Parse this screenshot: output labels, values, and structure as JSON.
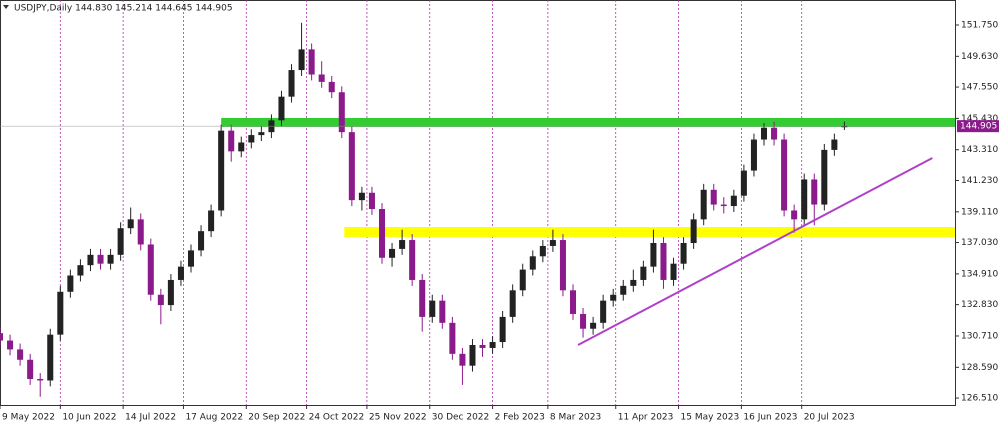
{
  "chart_data": {
    "type": "candlestick",
    "title": "USDJPY,Daily  144.830 145.214 144.645 144.905",
    "price_label": "144.905",
    "up_color": "#222222",
    "down_color": "#8b1a8b",
    "grid": true,
    "xlim": [
      0,
      380
    ],
    "ylim": [
      126.04,
      153.44
    ],
    "xticks": [
      {
        "value": 0,
        "label": "9 May 2022"
      },
      {
        "value": 24,
        "label": "10 Jun 2022"
      },
      {
        "value": 49,
        "label": "14 Jul 2022"
      },
      {
        "value": 73,
        "label": "17 Aug 2022"
      },
      {
        "value": 98,
        "label": "20 Sep 2022"
      },
      {
        "value": 122,
        "label": "24 Oct 2022"
      },
      {
        "value": 146,
        "label": "25 Nov 2022"
      },
      {
        "value": 171,
        "label": "30 Dec 2022"
      },
      {
        "value": 196,
        "label": "2 Feb 2023"
      },
      {
        "value": 218,
        "label": "8 Mar 2023"
      },
      {
        "value": 245,
        "label": "11 Apr 2023"
      },
      {
        "value": 270,
        "label": "15 May 2023"
      },
      {
        "value": 295,
        "label": "16 Jun 2023"
      },
      {
        "value": 319,
        "label": "20 Jul 2023"
      }
    ],
    "yticks": [
      {
        "value": 151.75,
        "label": "151.750"
      },
      {
        "value": 149.63,
        "label": "149.630"
      },
      {
        "value": 147.55,
        "label": "147.550"
      },
      {
        "value": 145.43,
        "label": "145.430"
      },
      {
        "value": 143.31,
        "label": "143.310"
      },
      {
        "value": 141.23,
        "label": "141.230"
      },
      {
        "value": 139.11,
        "label": "139.110"
      },
      {
        "value": 137.03,
        "label": "137.030"
      },
      {
        "value": 134.91,
        "label": "134.910"
      },
      {
        "value": 132.83,
        "label": "132.830"
      },
      {
        "value": 130.71,
        "label": "130.710"
      },
      {
        "value": 128.59,
        "label": "128.590"
      },
      {
        "value": 126.51,
        "label": "126.510"
      }
    ],
    "x": [
      0,
      4,
      8,
      12,
      16,
      20,
      24,
      28,
      32,
      36,
      40,
      44,
      48,
      52,
      56,
      60,
      64,
      68,
      72,
      76,
      80,
      84,
      88,
      92,
      96,
      100,
      104,
      108,
      112,
      116,
      120,
      124,
      128,
      132,
      136,
      140,
      144,
      148,
      152,
      156,
      160,
      164,
      168,
      172,
      176,
      180,
      184,
      188,
      192,
      196,
      200,
      204,
      208,
      212,
      216,
      220,
      224,
      228,
      232,
      236,
      240,
      244,
      248,
      252,
      256,
      260,
      264,
      268,
      272,
      276,
      280,
      284,
      288,
      292,
      296,
      300,
      304,
      308,
      312,
      316,
      320,
      324,
      328,
      332,
      336
    ],
    "open": [
      130.9,
      130.4,
      129.8,
      129.1,
      127.8,
      127.7,
      130.8,
      133.7,
      134.8,
      135.5,
      136.2,
      135.6,
      136.2,
      138.0,
      138.6,
      136.9,
      133.5,
      132.8,
      134.5,
      135.4,
      136.5,
      137.8,
      139.2,
      144.6,
      143.2,
      143.8,
      144.3,
      144.5,
      145.3,
      146.9,
      148.7,
      150.1,
      148.4,
      147.9,
      147.2,
      144.5,
      139.9,
      140.4,
      139.3,
      136.0,
      136.6,
      137.2,
      134.5,
      132.0,
      133.1,
      131.6,
      129.5,
      128.7,
      130.1,
      129.9,
      130.3,
      132.0,
      133.8,
      135.2,
      136.1,
      136.8,
      137.2,
      133.8,
      132.2,
      131.2,
      131.6,
      133.1,
      133.5,
      134.1,
      134.5,
      135.4,
      137.0,
      134.5,
      135.6,
      137.0,
      138.6,
      140.6,
      139.6,
      139.5,
      140.2,
      141.9,
      144.0,
      144.8,
      144.0,
      139.2,
      138.6,
      141.3,
      139.6,
      143.3,
      144.83
    ],
    "high": [
      131.3,
      130.8,
      130.2,
      129.5,
      128.2,
      131.2,
      134.1,
      135.2,
      135.9,
      136.6,
      136.6,
      136.6,
      138.4,
      139.4,
      139.0,
      137.3,
      133.9,
      134.9,
      135.8,
      136.9,
      138.2,
      139.6,
      145.0,
      145.0,
      144.2,
      144.7,
      144.9,
      145.7,
      147.3,
      149.1,
      151.9,
      150.5,
      149.3,
      148.3,
      147.6,
      144.9,
      140.8,
      140.8,
      139.7,
      137.0,
      137.9,
      137.6,
      134.9,
      133.5,
      133.5,
      132.0,
      129.9,
      130.5,
      130.5,
      130.7,
      132.4,
      134.2,
      135.6,
      136.5,
      137.2,
      137.9,
      137.6,
      134.2,
      132.6,
      132.0,
      133.5,
      133.9,
      134.5,
      135.2,
      135.8,
      137.9,
      137.4,
      136.0,
      137.4,
      139.0,
      141.0,
      141.0,
      140.1,
      140.6,
      142.3,
      144.4,
      145.1,
      145.2,
      144.4,
      139.6,
      141.7,
      141.7,
      143.7,
      144.4,
      145.214
    ],
    "low": [
      130.0,
      129.4,
      128.7,
      127.4,
      126.6,
      127.3,
      130.4,
      133.3,
      134.4,
      135.1,
      135.2,
      135.2,
      135.8,
      137.6,
      136.5,
      133.1,
      131.5,
      132.4,
      134.1,
      135.0,
      136.1,
      137.4,
      138.8,
      142.5,
      142.8,
      143.4,
      143.9,
      144.1,
      144.9,
      146.5,
      148.3,
      148.0,
      147.5,
      146.8,
      144.1,
      139.5,
      139.2,
      138.9,
      135.6,
      135.4,
      136.2,
      134.1,
      131.0,
      131.6,
      131.2,
      129.1,
      127.4,
      128.3,
      129.3,
      129.5,
      129.9,
      131.6,
      133.4,
      134.8,
      135.7,
      136.4,
      133.4,
      131.8,
      130.6,
      130.8,
      131.2,
      132.7,
      133.1,
      133.7,
      134.1,
      135.0,
      133.9,
      134.1,
      135.2,
      136.6,
      138.2,
      139.2,
      139.0,
      139.1,
      139.8,
      141.5,
      143.6,
      143.6,
      138.8,
      137.7,
      138.2,
      138.2,
      139.2,
      142.9,
      144.645
    ],
    "close": [
      130.4,
      129.8,
      129.1,
      127.8,
      127.7,
      130.8,
      133.7,
      134.8,
      135.5,
      136.2,
      135.6,
      136.2,
      138.0,
      138.6,
      136.9,
      133.5,
      132.8,
      134.5,
      135.4,
      136.5,
      137.8,
      139.2,
      144.6,
      143.2,
      143.8,
      144.3,
      144.5,
      145.3,
      146.9,
      148.7,
      150.1,
      148.4,
      147.9,
      147.2,
      144.5,
      139.9,
      140.4,
      139.3,
      136.0,
      136.6,
      137.2,
      134.5,
      132.0,
      133.1,
      131.6,
      129.5,
      128.7,
      130.1,
      129.9,
      130.3,
      132.0,
      133.8,
      135.2,
      136.1,
      136.8,
      137.2,
      133.8,
      132.2,
      131.2,
      131.6,
      133.1,
      133.5,
      134.1,
      134.5,
      135.4,
      137.0,
      134.5,
      135.6,
      137.0,
      138.6,
      140.6,
      139.6,
      139.5,
      140.2,
      141.9,
      144.0,
      144.8,
      144.0,
      139.2,
      138.6,
      141.3,
      139.6,
      143.3,
      144.0,
      144.905
    ],
    "zones": [
      {
        "color": "#33cc33",
        "x_start": 88,
        "low": 144.85,
        "high": 145.46
      },
      {
        "color": "#ffff00",
        "x_start": 137,
        "low": 137.41,
        "high": 138.08
      }
    ],
    "trendline": {
      "color": "#b040c8",
      "x": [
        230,
        371
      ],
      "y": [
        130.1,
        142.75
      ]
    }
  }
}
